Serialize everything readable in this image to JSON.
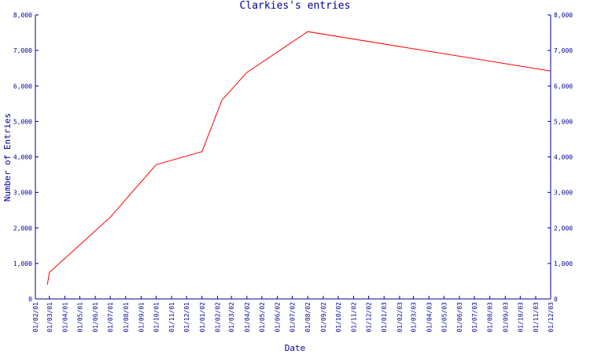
{
  "chart_data": {
    "type": "line",
    "title": "Clarkies's entries",
    "xlabel": "Date",
    "ylabel": "Number of Entries",
    "ylim": [
      0,
      8000
    ],
    "yticks": [
      0,
      1000,
      2000,
      3000,
      4000,
      5000,
      6000,
      7000,
      8000
    ],
    "ytick_labels": [
      "0",
      "1,000",
      "2,000",
      "3,000",
      "4,000",
      "5,000",
      "6,000",
      "7,000",
      "8,000"
    ],
    "x_tick_labels": [
      "01/02/01",
      "01/03/01",
      "01/04/01",
      "01/05/01",
      "01/06/01",
      "01/07/01",
      "01/08/01",
      "01/09/01",
      "01/10/01",
      "01/11/01",
      "01/12/01",
      "01/01/02",
      "01/02/02",
      "01/03/02",
      "01/04/02",
      "01/05/02",
      "01/06/02",
      "01/07/02",
      "01/08/02",
      "01/09/02",
      "01/10/02",
      "01/11/02",
      "01/12/02",
      "01/01/03",
      "01/02/03",
      "01/03/03",
      "01/04/03",
      "01/05/03",
      "01/06/03",
      "01/07/03",
      "01/08/03",
      "01/09/03",
      "01/10/03",
      "01/11/03",
      "01/12/03"
    ],
    "grid": false,
    "axes_color": "#000099",
    "series": [
      {
        "color": "#ff0000",
        "points": [
          {
            "x": "2001-02-25",
            "y": 400
          },
          {
            "x": "2001-03-01",
            "y": 750
          },
          {
            "x": "2001-07-01",
            "y": 2300
          },
          {
            "x": "2001-10-01",
            "y": 3780
          },
          {
            "x": "2002-01-01",
            "y": 4150
          },
          {
            "x": "2002-02-10",
            "y": 5600
          },
          {
            "x": "2002-04-01",
            "y": 6380
          },
          {
            "x": "2002-08-01",
            "y": 7530
          },
          {
            "x": "2003-12-01",
            "y": 6420
          }
        ]
      }
    ]
  }
}
